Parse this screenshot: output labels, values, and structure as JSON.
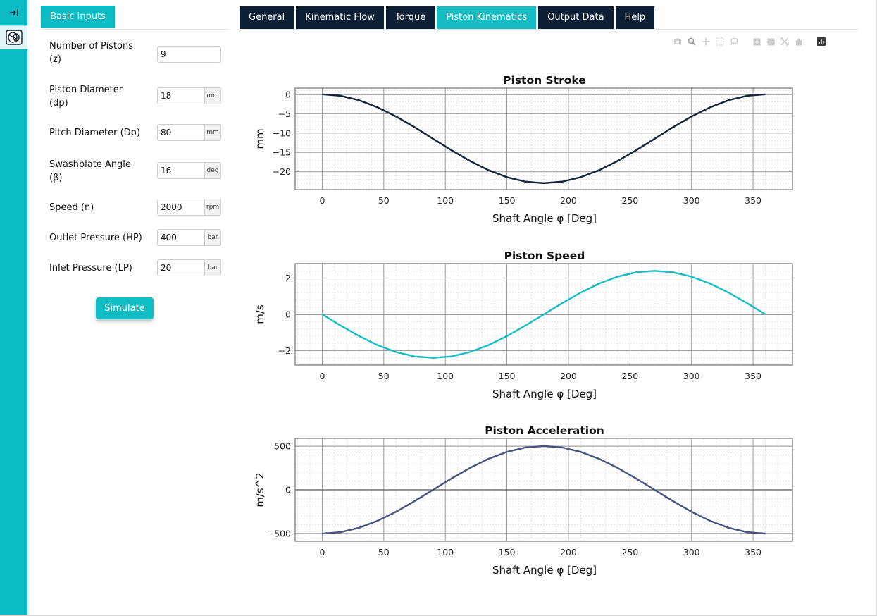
{
  "rail": {
    "collapse_icon": "collapse-sidebar-icon",
    "app_icon": "pump-icon"
  },
  "left_panel": {
    "tab_label": "Basic Inputs",
    "fields": [
      {
        "label_lines": [
          "Number of Pistons",
          "(z)"
        ],
        "value": "9",
        "unit": ""
      },
      {
        "label_lines": [
          "Piston Diameter",
          "(dp)"
        ],
        "value": "18",
        "unit": "mm"
      },
      {
        "label_lines": [
          "Pitch Diameter (Dp)"
        ],
        "value": "80",
        "unit": "mm"
      },
      {
        "label_lines": [
          "Swashplate Angle",
          "(β)"
        ],
        "value": "16",
        "unit": "deg"
      },
      {
        "label_lines": [
          "Speed (n)"
        ],
        "value": "2000",
        "unit": "rpm"
      },
      {
        "label_lines": [
          "Outlet Pressure (HP)"
        ],
        "value": "400",
        "unit": "bar"
      },
      {
        "label_lines": [
          "Inlet Pressure (LP)"
        ],
        "value": "20",
        "unit": "bar"
      }
    ],
    "simulate_label": "Simulate"
  },
  "tabs": [
    {
      "label": "General",
      "active": false
    },
    {
      "label": "Kinematic Flow",
      "active": false
    },
    {
      "label": "Torque",
      "active": false
    },
    {
      "label": "Piston Kinematics",
      "active": true
    },
    {
      "label": "Output Data",
      "active": false
    },
    {
      "label": "Help",
      "active": false
    }
  ],
  "modebar": [
    "camera-icon",
    "zoom-icon",
    "pan-icon",
    "box-select-icon",
    "lasso-icon",
    "zoom-in-icon",
    "zoom-out-icon",
    "autoscale-icon",
    "reset-axes-icon",
    "plotly-logo-icon"
  ],
  "colors": {
    "accent": "#0bbcc4",
    "nav_dark": "#0d1f35",
    "stroke_line": "#13233a",
    "speed_line": "#17bcc4",
    "accel_line": "#47547f"
  },
  "chart_data": [
    {
      "type": "line",
      "title": "Piston Stroke",
      "xlabel": "Shaft Angle φ [Deg]",
      "ylabel": "mm",
      "xlim": [
        -22,
        382
      ],
      "ylim": [
        -24.6,
        1.6
      ],
      "xticks": [
        0,
        50,
        100,
        150,
        200,
        250,
        300,
        350
      ],
      "yticks": [
        0,
        -5,
        -10,
        -15,
        -20
      ],
      "grid": true,
      "series": [
        {
          "color": "#13233a",
          "x": [
            0,
            15,
            30,
            45,
            60,
            75,
            90,
            105,
            120,
            135,
            150,
            165,
            180,
            195,
            210,
            225,
            240,
            255,
            270,
            285,
            300,
            315,
            330,
            345,
            360
          ],
          "y": [
            0,
            -0.39,
            -1.54,
            -3.37,
            -5.74,
            -8.48,
            -11.47,
            -14.44,
            -17.2,
            -19.58,
            -21.4,
            -22.55,
            -22.94,
            -22.55,
            -21.4,
            -19.58,
            -17.2,
            -14.44,
            -11.47,
            -8.48,
            -5.74,
            -3.37,
            -1.54,
            -0.39,
            0
          ]
        }
      ]
    },
    {
      "type": "line",
      "title": "Piston Speed",
      "xlabel": "Shaft Angle φ [Deg]",
      "ylabel": "m/s",
      "xlim": [
        -22,
        382
      ],
      "ylim": [
        -2.8,
        2.8
      ],
      "xticks": [
        0,
        50,
        100,
        150,
        200,
        250,
        300,
        350
      ],
      "yticks": [
        2,
        0,
        -2
      ],
      "grid": true,
      "series": [
        {
          "color": "#17bcc4",
          "x": [
            0,
            15,
            30,
            45,
            60,
            75,
            90,
            105,
            120,
            135,
            150,
            165,
            180,
            195,
            210,
            225,
            240,
            255,
            270,
            285,
            300,
            315,
            330,
            345,
            360
          ],
          "y": [
            0,
            -0.62,
            -1.2,
            -1.7,
            -2.08,
            -2.32,
            -2.4,
            -2.32,
            -2.08,
            -1.7,
            -1.2,
            -0.62,
            0,
            0.62,
            1.2,
            1.7,
            2.08,
            2.32,
            2.4,
            2.32,
            2.08,
            1.7,
            1.2,
            0.62,
            0
          ]
        }
      ]
    },
    {
      "type": "line",
      "title": "Piston Acceleration",
      "xlabel": "Shaft Angle φ [Deg]",
      "ylabel": "m/s^2",
      "xlim": [
        -22,
        382
      ],
      "ylim": [
        -590,
        590
      ],
      "xticks": [
        0,
        50,
        100,
        150,
        200,
        250,
        300,
        350
      ],
      "yticks": [
        500,
        0,
        -500
      ],
      "grid": true,
      "series": [
        {
          "color": "#47547f",
          "x": [
            0,
            15,
            30,
            45,
            60,
            75,
            90,
            105,
            120,
            135,
            150,
            165,
            180,
            195,
            210,
            225,
            240,
            255,
            270,
            285,
            300,
            315,
            330,
            345,
            360
          ],
          "y": [
            -502,
            -485,
            -435,
            -355,
            -251,
            -130,
            0,
            130,
            251,
            355,
            435,
            485,
            502,
            485,
            435,
            355,
            251,
            130,
            0,
            -130,
            -251,
            -355,
            -435,
            -485,
            -502
          ]
        }
      ]
    }
  ]
}
